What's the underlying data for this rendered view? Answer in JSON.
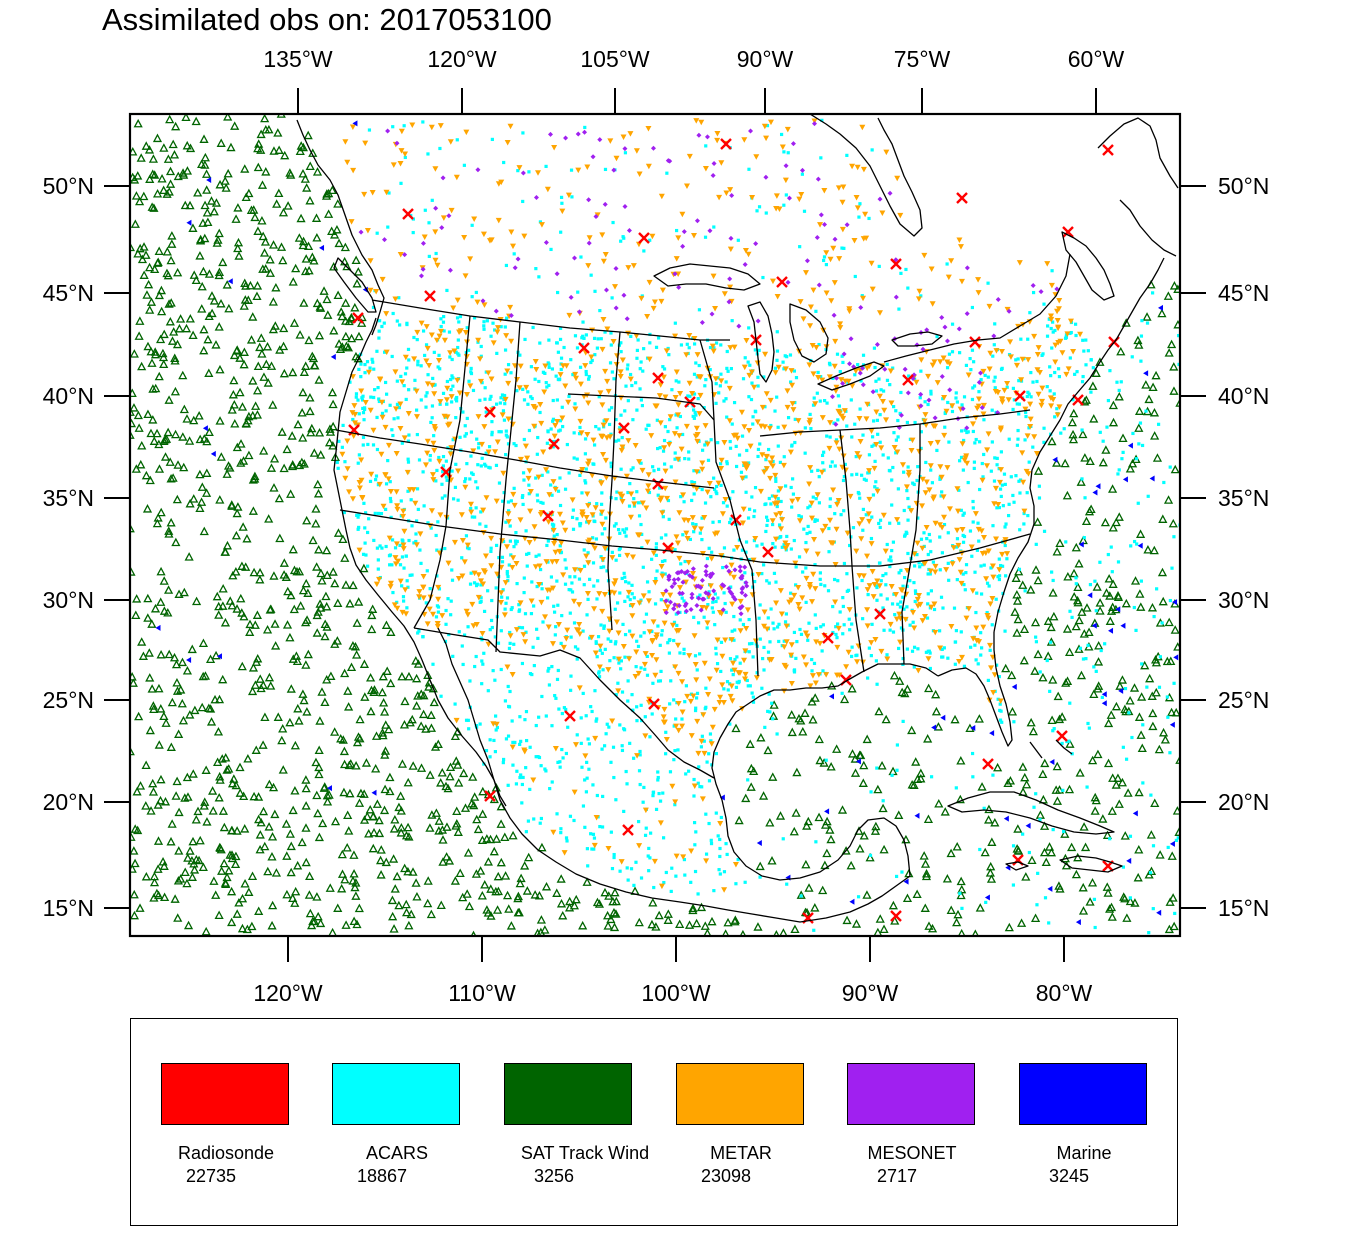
{
  "title": "Assimilated obs on: 2017053100",
  "map": {
    "top_lon_labels": [
      "135°W",
      "120°W",
      "105°W",
      "90°W",
      "75°W",
      "60°W"
    ],
    "bottom_lon_labels": [
      "120°W",
      "110°W",
      "100°W",
      "90°W",
      "80°W"
    ],
    "lat_labels": [
      "50°N",
      "45°N",
      "40°N",
      "35°N",
      "30°N",
      "25°N",
      "20°N",
      "15°N"
    ]
  },
  "legend": [
    {
      "name": "Radiosonde",
      "count": "22735",
      "color": "#ff0000",
      "marker": "x-mark"
    },
    {
      "name": "ACARS",
      "count": "18867",
      "color": "#00ffff",
      "marker": "square-dot"
    },
    {
      "name": "SAT Track Wind",
      "count": "3256",
      "color": "#006400",
      "marker": "hollow-triangle-up"
    },
    {
      "name": "METAR",
      "count": "23098",
      "color": "#ffa500",
      "marker": "triangle-down"
    },
    {
      "name": "MESONET",
      "count": "2717",
      "color": "#a020f0",
      "marker": "diamond"
    },
    {
      "name": "Marine",
      "count": "3245",
      "color": "#0000ff",
      "marker": "triangle-left"
    }
  ]
}
